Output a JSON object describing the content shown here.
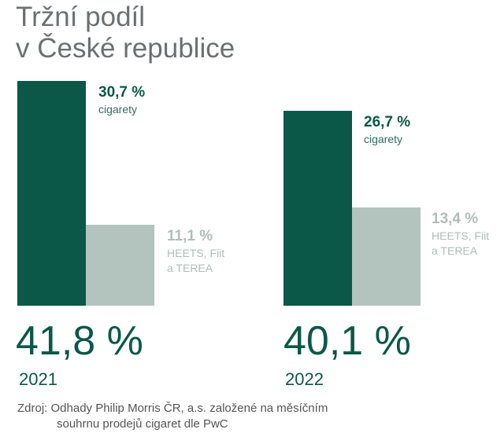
{
  "title_line1": "Tržní podíl",
  "title_line2": "v České republice",
  "colors": {
    "cigarettes": "#0b5849",
    "heated": "#b3c4be",
    "heated_label": "#b0bdb8"
  },
  "chart_data": {
    "type": "bar",
    "categories": [
      "2021",
      "2022"
    ],
    "series": [
      {
        "name": "cigarety",
        "values": [
          30.7,
          26.7
        ],
        "labels": [
          "30,7 %",
          "26,7 %"
        ]
      },
      {
        "name": "HEETS, Fiit a TEREA",
        "values": [
          11.1,
          13.4
        ],
        "labels": [
          "11,1 %",
          "13,4 %"
        ]
      }
    ],
    "groups": [
      {
        "year": "2021",
        "total": "41,8 %",
        "cig_label": "30,7 %",
        "cig_name": "cigarety",
        "heat_label": "11,1 %",
        "heat_name1": "HEETS, Fiit",
        "heat_name2": "a TEREA"
      },
      {
        "year": "2022",
        "total": "40,1 %",
        "cig_label": "26,7 %",
        "cig_name": "cigarety",
        "heat_label": "13,4 %",
        "heat_name1": "HEETS, Fiit",
        "heat_name2": "a TEREA"
      }
    ]
  },
  "source_line1": "Zdroj: Odhady Philip Morris ČR, a.s. založené na měsíčním",
  "source_line2": "souhrnu prodejů cigaret dle PwC"
}
